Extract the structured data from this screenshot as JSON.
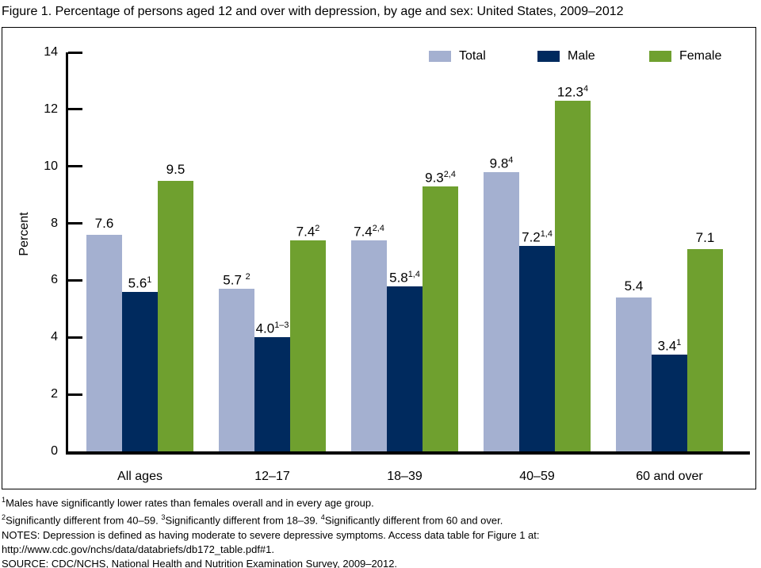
{
  "title": "Figure 1. Percentage of persons aged 12 and over with depression, by age and sex: United States, 2009–2012",
  "chart_data": {
    "type": "bar",
    "title": "Figure 1. Percentage of persons aged 12 and over with depression, by age and sex: United States, 2009–2012",
    "categories": [
      "All ages",
      "12–17",
      "18–39",
      "40–59",
      "60 and over"
    ],
    "series": [
      {
        "name": "Total",
        "color": "#a4b0d0",
        "values": [
          7.6,
          5.7,
          7.4,
          9.8,
          5.4
        ],
        "labels": [
          {
            "t": "7.6"
          },
          {
            "t": "5.7 ",
            "s": "2"
          },
          {
            "t": "7.4",
            "s": "2,4"
          },
          {
            "t": "9.8",
            "s": "4"
          },
          {
            "t": "5.4"
          }
        ]
      },
      {
        "name": "Male",
        "color": "#002a5e",
        "values": [
          5.6,
          4.0,
          5.8,
          7.2,
          3.4
        ],
        "labels": [
          {
            "t": "5.6",
            "s": "1"
          },
          {
            "t": "4.0",
            "s": "1–3"
          },
          {
            "t": "5.8",
            "s": "1,4"
          },
          {
            "t": "7.2",
            "s": "1,4"
          },
          {
            "t": "3.4",
            "s": "1"
          }
        ]
      },
      {
        "name": "Female",
        "color": "#6fa02f",
        "values": [
          9.5,
          7.4,
          9.3,
          12.3,
          7.1
        ],
        "labels": [
          {
            "t": "9.5"
          },
          {
            "t": "7.4",
            "s": "2"
          },
          {
            "t": "9.3",
            "s": "2,4"
          },
          {
            "t": "12.3",
            "s": "4"
          },
          {
            "t": "7.1"
          }
        ]
      }
    ],
    "xlabel": "",
    "ylabel": "Percent",
    "ylim": [
      0,
      14
    ],
    "yticks": [
      0,
      2,
      4,
      6,
      8,
      10,
      12,
      14
    ],
    "grid": false,
    "legend_position": "top-right-inside"
  },
  "footnotes": [
    [
      {
        "s": "1"
      },
      {
        "t": "Males have significantly lower rates than females overall and in every age group."
      }
    ],
    [
      {
        "s": "2"
      },
      {
        "t": "Significantly different from 40–59. "
      },
      {
        "s": "3"
      },
      {
        "t": "Significantly different from 18–39. "
      },
      {
        "s": "4"
      },
      {
        "t": "Significantly different from 60 and over."
      }
    ],
    [
      {
        "t": "NOTES: Depression is defined as having moderate to severe depressive symptoms. Access data table for Figure 1 at:"
      }
    ],
    [
      {
        "t": "http://www.cdc.gov/nchs/data/databriefs/db172_table.pdf#1."
      }
    ],
    [
      {
        "t": "SOURCE: CDC/NCHS, National Health and Nutrition Examination Survey, 2009–2012."
      }
    ]
  ]
}
